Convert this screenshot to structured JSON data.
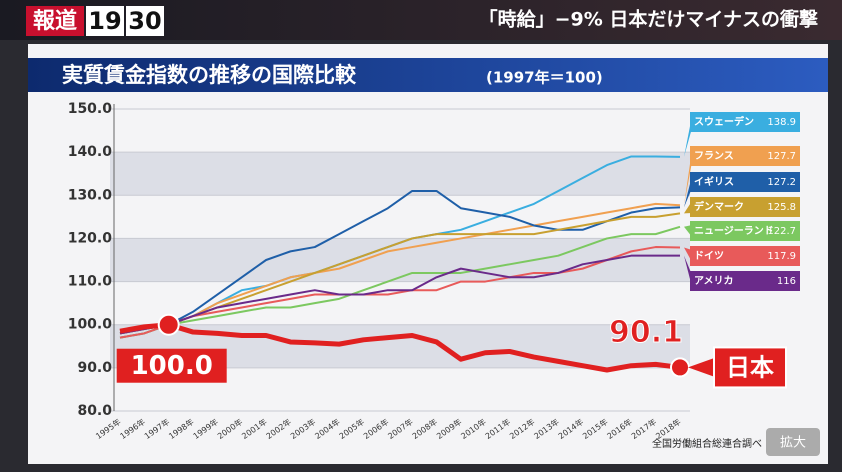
{
  "screen": {
    "logo": "報道",
    "logo_numbers": [
      "19",
      "30"
    ],
    "headline": "「時給」−9% 日本だけマイナスの衝撃",
    "zoom_button": "拡大"
  },
  "chart_data": {
    "type": "line",
    "title": "実質賃金指数の推移の国際比較",
    "subtitle": "(1997年＝100)",
    "source": "全国労働組合総連合調べ",
    "categories": [
      "1995年",
      "1996年",
      "1997年",
      "1998年",
      "1999年",
      "2000年",
      "2001年",
      "2002年",
      "2003年",
      "2004年",
      "2005年",
      "2006年",
      "2007年",
      "2008年",
      "2009年",
      "2010年",
      "2011年",
      "2012年",
      "2013年",
      "2014年",
      "2015年",
      "2016年",
      "2017年",
      "2018年"
    ],
    "ylim": [
      80,
      150
    ],
    "yticks": [
      {
        "value": 80,
        "label": "80.0"
      },
      {
        "value": 90,
        "label": "90.0"
      },
      {
        "value": 100,
        "label": "100.0"
      },
      {
        "value": 110,
        "label": "110.0"
      },
      {
        "value": 120,
        "label": "120.0"
      },
      {
        "value": 130,
        "label": "130.0"
      },
      {
        "value": 140,
        "label": "140.0"
      },
      {
        "value": 150,
        "label": "150.0"
      }
    ],
    "grid": true,
    "series": [
      {
        "name": "スウェーデン",
        "color": "#3aaee0",
        "values": [
          97,
          98,
          100,
          102,
          105,
          108,
          109,
          111,
          112,
          114,
          116,
          118,
          120,
          121,
          122,
          124,
          126,
          128,
          131,
          134,
          137,
          139,
          139,
          138.9
        ]
      },
      {
        "name": "フランス",
        "color": "#f0a050",
        "values": [
          98,
          99,
          100,
          102,
          105,
          107,
          109,
          111,
          112,
          113,
          115,
          117,
          118,
          119,
          120,
          121,
          122,
          123,
          124,
          125,
          126,
          127,
          128,
          127.7
        ]
      },
      {
        "name": "イギリス",
        "color": "#1f5fa8",
        "values": [
          98,
          99,
          100,
          103,
          107,
          111,
          115,
          117,
          118,
          121,
          124,
          127,
          131,
          131,
          127,
          126,
          125,
          123,
          122,
          122,
          124,
          126,
          127,
          127.2
        ]
      },
      {
        "name": "デンマーク",
        "color": "#c8a030",
        "values": [
          98,
          99,
          100,
          102,
          104,
          106,
          108,
          110,
          112,
          114,
          116,
          118,
          120,
          121,
          121,
          121,
          121,
          121,
          122,
          123,
          124,
          125,
          125,
          125.8
        ]
      },
      {
        "name": "ニュージーランド",
        "color": "#7cc860",
        "values": [
          97,
          98,
          100,
          101,
          102,
          103,
          104,
          104,
          105,
          106,
          108,
          110,
          112,
          112,
          112,
          113,
          114,
          115,
          116,
          118,
          120,
          121,
          121,
          122.7
        ]
      },
      {
        "name": "ドイツ",
        "color": "#e85a5a",
        "values": [
          97,
          98,
          100,
          102,
          103,
          104,
          105,
          106,
          107,
          107,
          107,
          107,
          108,
          108,
          110,
          110,
          111,
          112,
          112,
          113,
          115,
          117,
          118,
          117.9
        ]
      },
      {
        "name": "アメリカ",
        "color": "#6a2a8a",
        "values": [
          98,
          99,
          100,
          102,
          104,
          105,
          106,
          107,
          108,
          107,
          107,
          108,
          108,
          111,
          113,
          112,
          111,
          111,
          112,
          114,
          115,
          116,
          116,
          116.0
        ]
      },
      {
        "name": "日本",
        "color": "#e02020",
        "values": [
          98.5,
          99.5,
          100,
          98.3,
          98,
          97.5,
          97.5,
          96,
          95.8,
          95.5,
          96.5,
          97,
          97.5,
          96,
          92,
          93.5,
          93.8,
          92.5,
          91.5,
          90.5,
          89.5,
          90.5,
          90.8,
          90.1
        ],
        "value_labels": [
          null,
          null,
          "100.0",
          null,
          null,
          null,
          null,
          null,
          null,
          null,
          null,
          null,
          null,
          null,
          null,
          null,
          null,
          null,
          null,
          null,
          null,
          null,
          null,
          null
        ]
      }
    ]
  }
}
